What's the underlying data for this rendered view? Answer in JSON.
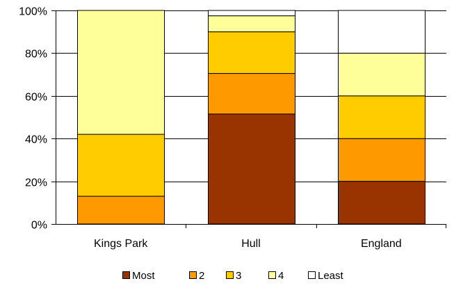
{
  "chart_data": {
    "type": "bar",
    "stacked": true,
    "percent_axis": true,
    "categories": [
      "Kings Park",
      "Hull",
      "England"
    ],
    "series": [
      {
        "name": "Most",
        "color": "#993300",
        "values": [
          0,
          51.5,
          20
        ]
      },
      {
        "name": "2",
        "color": "#FF9900",
        "values": [
          13,
          19,
          20
        ]
      },
      {
        "name": "3",
        "color": "#FFCC00",
        "values": [
          29,
          19.5,
          20
        ]
      },
      {
        "name": "4",
        "color": "#FFFF99",
        "values": [
          58,
          7.5,
          20
        ]
      },
      {
        "name": "Least",
        "color": "#FFFFFF",
        "values": [
          0,
          2.5,
          20
        ]
      }
    ],
    "ylim": [
      0,
      100
    ],
    "yticks": [
      "0%",
      "20%",
      "40%",
      "60%",
      "80%",
      "100%"
    ],
    "title": "",
    "xlabel": "",
    "ylabel": "",
    "grid": true,
    "legend_position": "bottom"
  }
}
